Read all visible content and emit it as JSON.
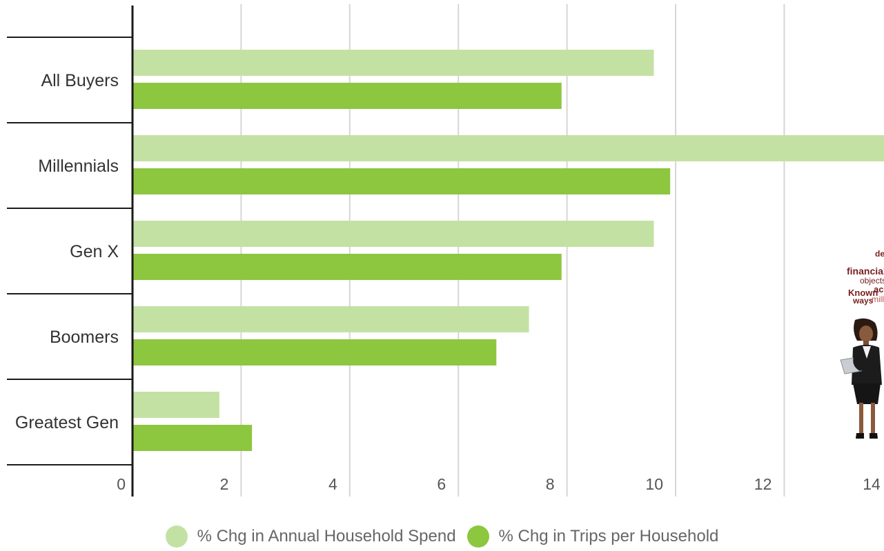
{
  "chart_data": {
    "type": "bar",
    "orientation": "horizontal",
    "categories": [
      "All Buyers",
      "Millennials",
      "Gen X",
      "Boomers",
      "Greatest Gen"
    ],
    "series": [
      {
        "name": "% Chg in Annual Household Spend",
        "color": "#c4e1a4",
        "values": [
          9.6,
          14.0,
          9.6,
          7.3,
          1.6
        ]
      },
      {
        "name": "% Chg in Trips per Household",
        "color": "#8dc63f",
        "values": [
          7.9,
          9.9,
          7.9,
          6.7,
          2.2
        ]
      }
    ],
    "x_ticks": [
      "0",
      "2",
      "4",
      "6",
      "8",
      "10",
      "12",
      "14"
    ],
    "xlim": [
      0,
      14
    ],
    "grid": true,
    "legend_position": "bottom",
    "title": "",
    "xlabel": "",
    "ylabel": ""
  },
  "legend": {
    "items": [
      {
        "label": "% Chg in Annual Household Spend",
        "color": "#c4e1a4"
      },
      {
        "label": "% Chg in Trips per Household",
        "color": "#8dc63f"
      }
    ]
  },
  "overlay": {
    "word_cloud": {
      "words": [
        {
          "text": "des",
          "color": "#7a1e1e"
        },
        {
          "text": "financial",
          "color": "#7a1e1e"
        },
        {
          "text": "objects",
          "color": "#7a1e1e"
        },
        {
          "text": "Known",
          "color": "#7a1e1e"
        },
        {
          "text": "ac",
          "color": "#7a1e1e"
        },
        {
          "text": "ways",
          "color": "#7a1e1e"
        },
        {
          "text": "mill",
          "color": "#c05050"
        }
      ]
    },
    "figure_icon": "businesswoman-with-laptop-icon"
  }
}
